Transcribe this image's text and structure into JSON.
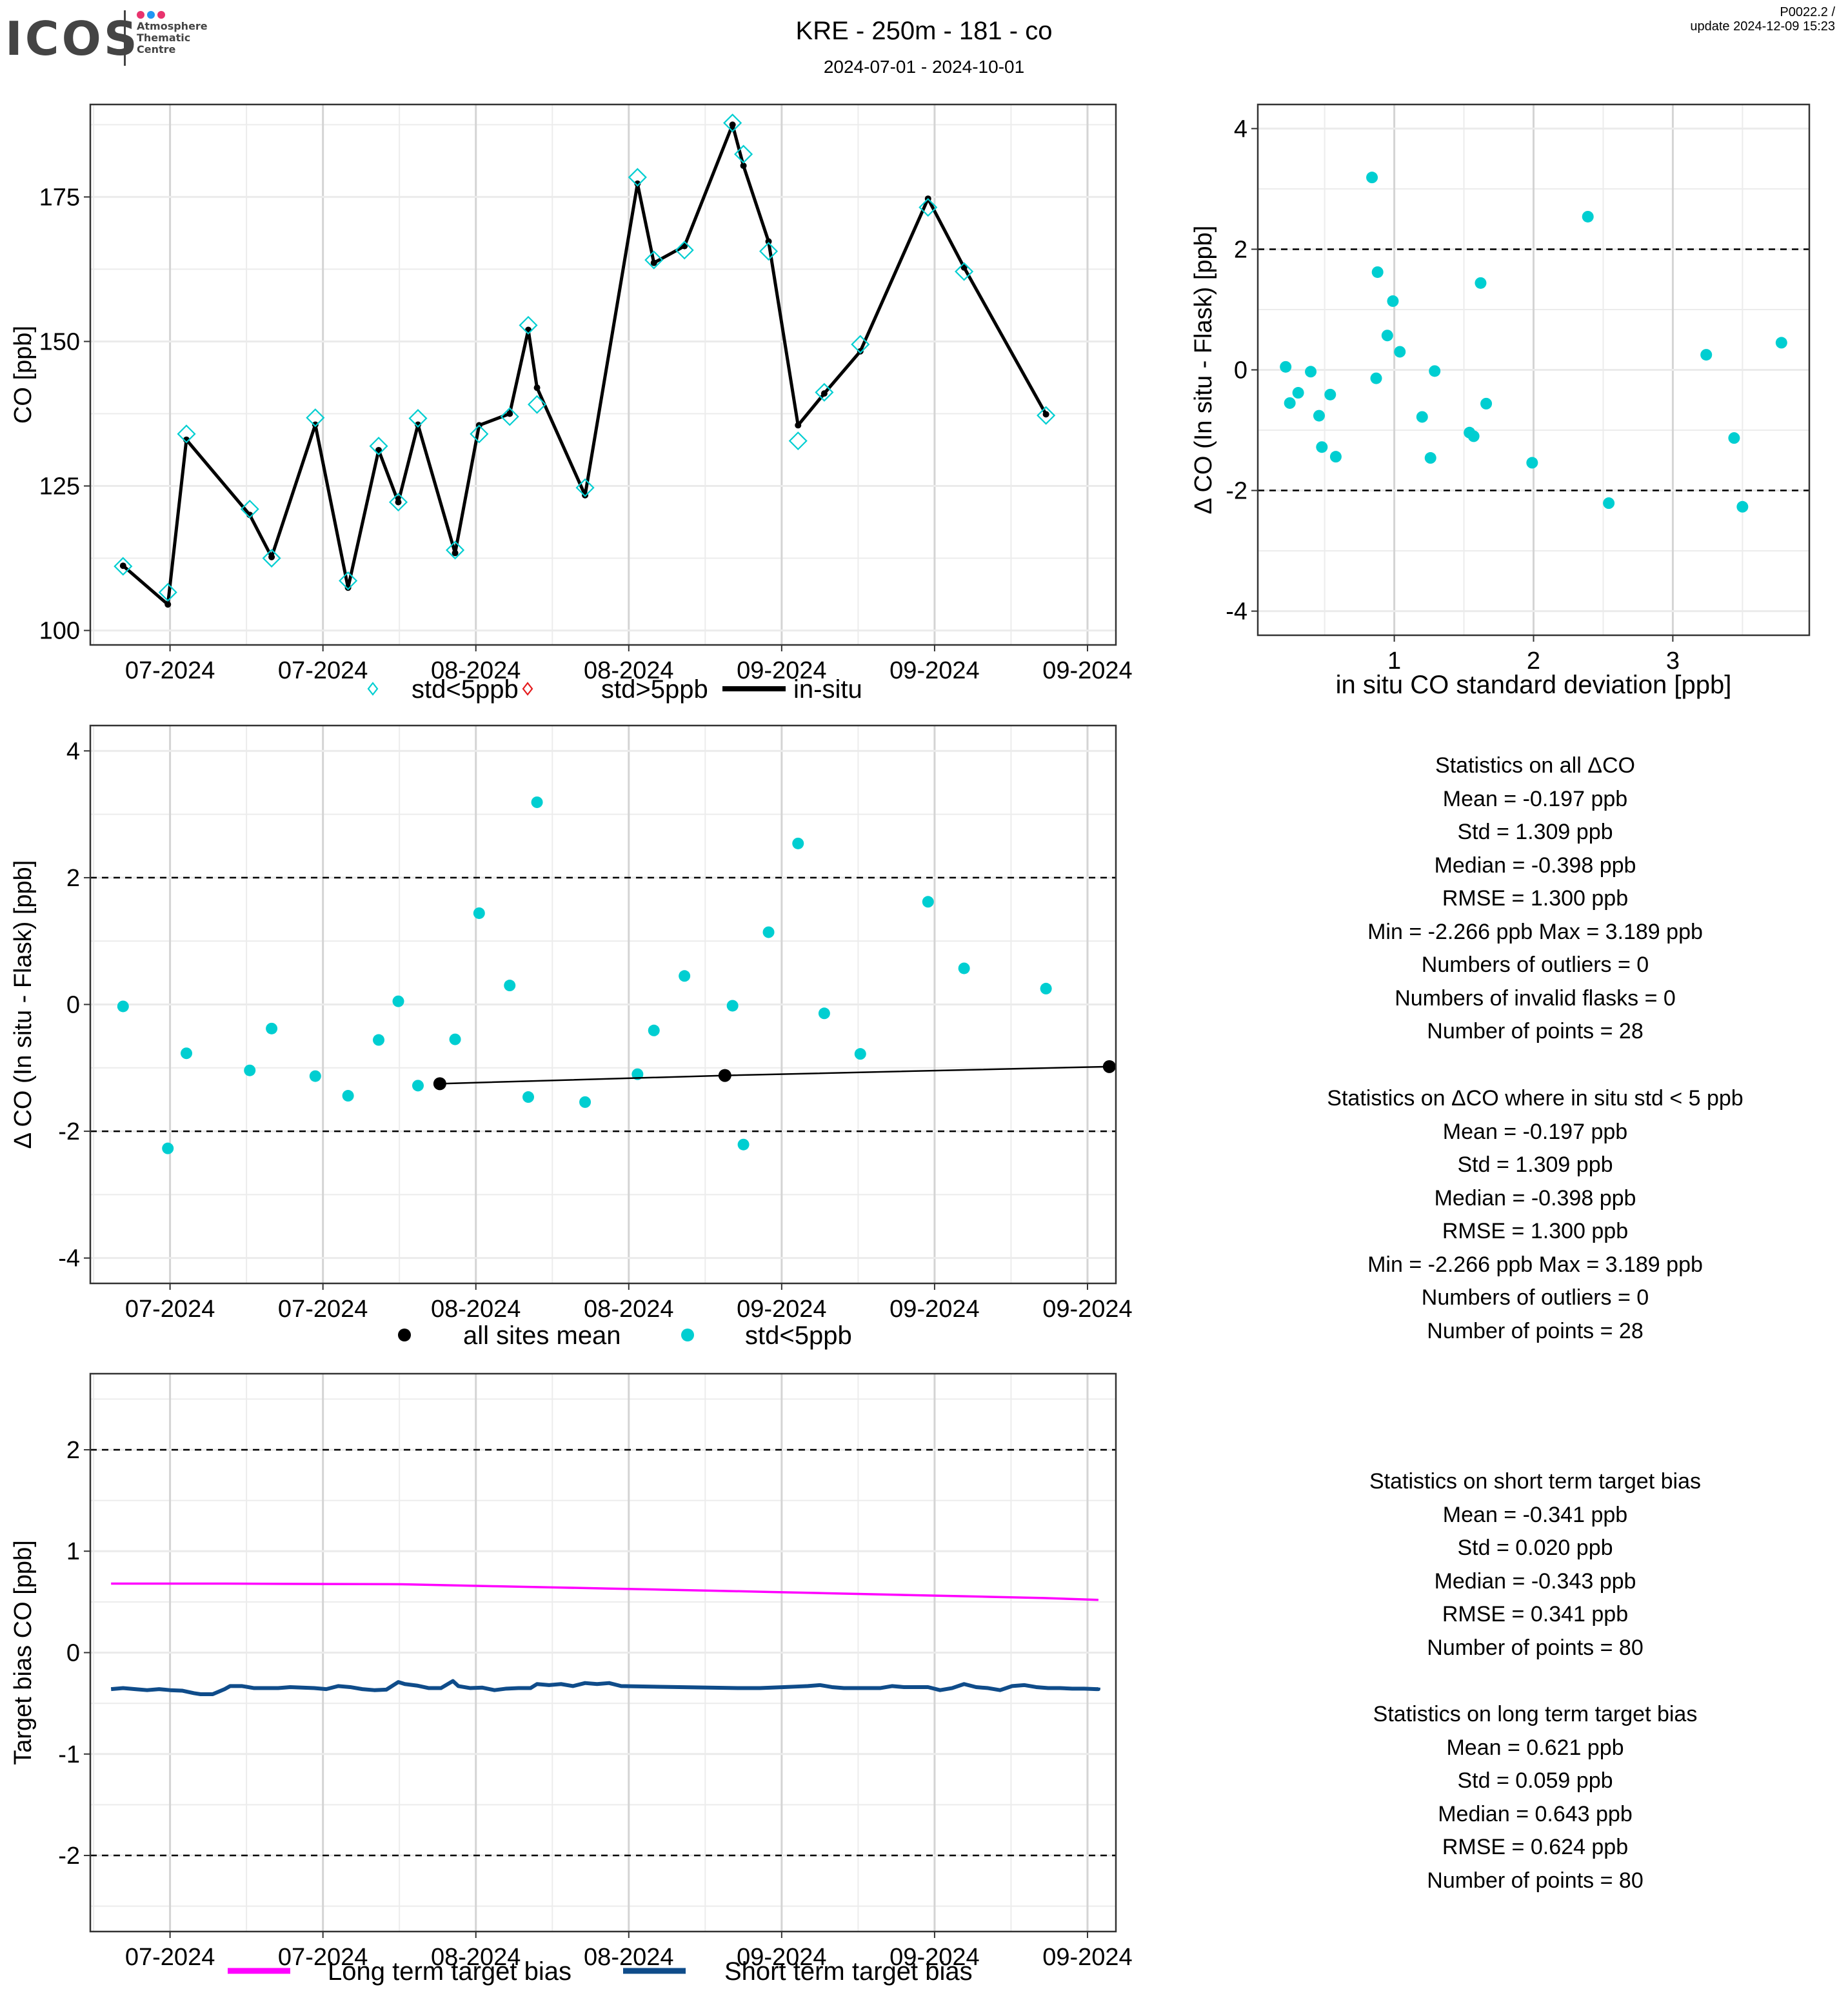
{
  "header": {
    "logo_text": "ICOS",
    "logo_subtitle": [
      "Atmosphere",
      "Thematic",
      "Centre"
    ],
    "logo_dot_colors": [
      "#e8336e",
      "#2196f3",
      "#e8336e"
    ],
    "title": "KRE - 250m - 181 - co",
    "date_range": "2024-07-01 - 2024-10-01",
    "version": "P0022.2 /",
    "update": "update  2024-12-09 15:23"
  },
  "colors": {
    "cyan": "#00CED1",
    "red": "#E41A1C",
    "black": "#000000",
    "magenta": "#FF00FF",
    "navy": "#0F4C8A",
    "grid_major": "#d4d4d4",
    "grid_minor": "#ececec"
  },
  "chart_data": [
    {
      "id": "timeseries",
      "type": "line",
      "title": "",
      "xlabel": "",
      "ylabel": "CO [ppb]",
      "x_unit": "days since 2024-07-01",
      "xlim": [
        -7.3,
        86.6
      ],
      "ylim": [
        97.5,
        191
      ],
      "x_ticks": [
        0,
        14,
        28,
        42,
        56,
        70,
        84
      ],
      "x_tick_labels": [
        "07-2024",
        "07-2024",
        "08-2024",
        "08-2024",
        "09-2024",
        "09-2024",
        "09-2024"
      ],
      "y_ticks": [
        100,
        125,
        150,
        175
      ],
      "y_tick_labels": [
        "100",
        "125",
        "150",
        "175"
      ],
      "grid": true,
      "legend": {
        "position": "bottom",
        "entries": [
          "std<5ppb",
          "std>5ppb",
          "in-situ"
        ]
      },
      "series": [
        {
          "name": "in-situ",
          "style": "line",
          "x": [
            -4.3,
            -0.2,
            1.5,
            7.3,
            9.3,
            13.3,
            16.3,
            19.1,
            20.9,
            22.7,
            26.1,
            28.3,
            31.1,
            32.8,
            33.6,
            38.0,
            42.8,
            44.3,
            47.1,
            51.5,
            52.5,
            54.8,
            57.5,
            59.9,
            63.2,
            69.4,
            72.7,
            80.2
          ],
          "y": [
            111.2,
            104.5,
            133.0,
            120.0,
            112.7,
            135.6,
            107.4,
            131.2,
            122.2,
            135.6,
            113.4,
            135.5,
            137.5,
            152.0,
            142.0,
            123.4,
            177.3,
            163.6,
            166.5,
            187.5,
            180.4,
            167.3,
            135.5,
            141.0,
            148.3,
            174.7,
            162.8,
            137.4
          ]
        },
        {
          "name": "std<5ppb",
          "style": "open-diamond",
          "x": [
            -4.3,
            -0.2,
            1.5,
            7.3,
            9.3,
            13.3,
            16.3,
            19.1,
            20.9,
            22.7,
            26.1,
            28.3,
            31.1,
            32.8,
            33.6,
            38.0,
            42.8,
            44.3,
            47.1,
            51.5,
            52.5,
            54.8,
            57.5,
            59.9,
            63.2,
            69.4,
            72.7,
            80.2
          ],
          "y": [
            111.1,
            106.6,
            134.0,
            121.0,
            112.5,
            136.8,
            108.6,
            131.9,
            122.2,
            136.7,
            113.9,
            134.0,
            137.0,
            152.8,
            139.1,
            124.7,
            178.4,
            164.1,
            165.8,
            187.8,
            182.4,
            165.6,
            132.8,
            141.2,
            149.5,
            173.2,
            162.1,
            137.2
          ]
        },
        {
          "name": "std>5ppb",
          "style": "open-diamond",
          "x": [],
          "y": []
        }
      ]
    },
    {
      "id": "scatter_std",
      "type": "scatter",
      "title": "",
      "xlabel": "in situ CO standard deviation [ppb]",
      "ylabel": "Δ CO (In situ - Flask) [ppb]",
      "xlim": [
        0.02,
        3.98
      ],
      "ylim": [
        -4.4,
        4.4
      ],
      "x_ticks": [
        1,
        2,
        3
      ],
      "x_tick_labels": [
        "1",
        "2",
        "3"
      ],
      "y_ticks": [
        -4,
        -2,
        0,
        2,
        4
      ],
      "y_tick_labels": [
        "-4",
        "-2",
        "0",
        "2",
        "4"
      ],
      "hlines": [
        2,
        -2
      ],
      "grid": true,
      "series": [
        {
          "name": "std<5ppb",
          "x": [
            0.22,
            0.25,
            0.31,
            0.4,
            0.46,
            0.48,
            0.54,
            0.58,
            0.84,
            0.87,
            0.88,
            0.95,
            0.99,
            1.04,
            1.2,
            1.26,
            1.29,
            1.54,
            1.57,
            1.62,
            1.66,
            1.99,
            2.39,
            2.54,
            3.24,
            3.44,
            3.5,
            3.78
          ],
          "y": [
            0.05,
            -0.55,
            -0.38,
            -0.03,
            -0.76,
            -1.28,
            -0.41,
            -1.44,
            3.19,
            -0.14,
            1.62,
            0.57,
            1.14,
            0.3,
            -0.78,
            -1.46,
            -0.02,
            -1.04,
            -1.1,
            1.44,
            -0.56,
            -1.54,
            2.54,
            -2.21,
            0.25,
            -1.13,
            -2.27,
            0.45
          ]
        }
      ]
    },
    {
      "id": "delta_timeseries",
      "type": "scatter",
      "title": "",
      "xlabel": "",
      "ylabel": "Δ CO (In situ - Flask) [ppb]",
      "x_unit": "days since 2024-07-01",
      "xlim": [
        -7.3,
        86.6
      ],
      "ylim": [
        -4.4,
        4.4
      ],
      "x_ticks": [
        0,
        14,
        28,
        42,
        56,
        70,
        84
      ],
      "x_tick_labels": [
        "07-2024",
        "07-2024",
        "08-2024",
        "08-2024",
        "09-2024",
        "09-2024",
        "09-2024"
      ],
      "y_ticks": [
        -4,
        -2,
        0,
        2,
        4
      ],
      "y_tick_labels": [
        "-4",
        "-2",
        "0",
        "2",
        "4"
      ],
      "hlines": [
        2,
        -2
      ],
      "grid": true,
      "legend": {
        "position": "bottom",
        "entries": [
          "all sites mean",
          "std<5ppb"
        ]
      },
      "series": [
        {
          "name": "std<5ppb",
          "x": [
            -4.3,
            -0.2,
            1.5,
            7.3,
            9.3,
            13.3,
            16.3,
            19.1,
            20.9,
            22.7,
            26.1,
            28.3,
            31.1,
            32.8,
            33.6,
            38.0,
            42.8,
            44.3,
            47.1,
            51.5,
            52.5,
            54.8,
            57.5,
            59.9,
            63.2,
            69.4,
            72.7,
            80.2
          ],
          "y": [
            -0.03,
            -2.27,
            -0.77,
            -1.04,
            -0.38,
            -1.13,
            -1.44,
            -0.56,
            0.05,
            -1.28,
            -0.55,
            1.44,
            0.3,
            -1.46,
            3.19,
            -1.54,
            -1.1,
            -0.41,
            0.45,
            -0.02,
            -2.21,
            1.14,
            2.54,
            -0.14,
            -0.78,
            1.62,
            0.57,
            0.25
          ]
        },
        {
          "name": "all sites mean",
          "x": [
            24.7,
            50.8,
            86.0
          ],
          "y": [
            -1.25,
            -1.12,
            -0.98
          ]
        }
      ]
    },
    {
      "id": "target_bias",
      "type": "line",
      "title": "",
      "xlabel": "",
      "ylabel": "Target bias CO [ppb]",
      "x_unit": "days since 2024-07-01",
      "xlim": [
        -7.3,
        86.6
      ],
      "ylim": [
        -2.75,
        2.75
      ],
      "x_ticks": [
        0,
        14,
        28,
        42,
        56,
        70,
        84
      ],
      "x_tick_labels": [
        "07-2024",
        "07-2024",
        "08-2024",
        "08-2024",
        "09-2024",
        "09-2024",
        "09-2024"
      ],
      "y_ticks": [
        -2,
        -1,
        0,
        1,
        2
      ],
      "y_tick_labels": [
        "-2",
        "-1",
        "0",
        "1",
        "2"
      ],
      "hlines": [
        2,
        -2
      ],
      "grid": true,
      "legend": {
        "position": "bottom",
        "entries": [
          "Long term target bias",
          "Short term target bias"
        ]
      },
      "series": [
        {
          "name": "Long term target bias",
          "x": [
            -5.4,
            0,
            5,
            10,
            15,
            20,
            21.2,
            25,
            30,
            35,
            40,
            45,
            50,
            55,
            60,
            65,
            70,
            75,
            80,
            85.0
          ],
          "y": [
            0.68,
            0.68,
            0.68,
            0.678,
            0.676,
            0.675,
            0.674,
            0.665,
            0.654,
            0.643,
            0.632,
            0.621,
            0.61,
            0.598,
            0.586,
            0.574,
            0.562,
            0.55,
            0.538,
            0.52
          ]
        },
        {
          "name": "Short term target bias",
          "x": [
            -5.4,
            -4.3,
            -3.2,
            -2.1,
            -1.0,
            0,
            1.1,
            2.2,
            2.8,
            3.9,
            5.0,
            5.5,
            6.6,
            7.7,
            8.8,
            9.9,
            11.0,
            12.1,
            13.2,
            14.3,
            15.4,
            16.5,
            17.6,
            18.7,
            19.8,
            20.9,
            21.5,
            22.6,
            23.7,
            24.8,
            25.9,
            26.4,
            27.5,
            28.6,
            29.7,
            30.8,
            31.9,
            33.0,
            33.6,
            34.7,
            35.8,
            36.9,
            38.0,
            39.1,
            40.2,
            41.3,
            52.0,
            54.0,
            55.1,
            56.2,
            57.3,
            58.4,
            59.5,
            60.6,
            61.7,
            62.8,
            63.9,
            65.0,
            66.1,
            67.2,
            68.3,
            69.4,
            70.5,
            71.6,
            72.7,
            73.8,
            74.9,
            76.0,
            77.1,
            78.2,
            79.3,
            80.4,
            81.5,
            82.6,
            83.7,
            84.8,
            85.0,
            84.9,
            85.0,
            85.0
          ],
          "y": [
            -0.36,
            -0.35,
            -0.36,
            -0.37,
            -0.36,
            -0.37,
            -0.375,
            -0.4,
            -0.41,
            -0.41,
            -0.36,
            -0.33,
            -0.33,
            -0.35,
            -0.35,
            -0.35,
            -0.34,
            -0.345,
            -0.35,
            -0.36,
            -0.33,
            -0.34,
            -0.36,
            -0.37,
            -0.365,
            -0.29,
            -0.31,
            -0.325,
            -0.35,
            -0.35,
            -0.28,
            -0.33,
            -0.35,
            -0.345,
            -0.37,
            -0.355,
            -0.35,
            -0.35,
            -0.31,
            -0.32,
            -0.31,
            -0.33,
            -0.3,
            -0.31,
            -0.3,
            -0.33,
            -0.35,
            -0.35,
            -0.345,
            -0.34,
            -0.335,
            -0.33,
            -0.32,
            -0.34,
            -0.35,
            -0.35,
            -0.35,
            -0.35,
            -0.33,
            -0.34,
            -0.34,
            -0.34,
            -0.37,
            -0.35,
            -0.31,
            -0.34,
            -0.35,
            -0.37,
            -0.33,
            -0.32,
            -0.34,
            -0.35,
            -0.35,
            -0.355,
            -0.355,
            -0.36,
            -0.36,
            -0.355,
            -0.36,
            -0.345
          ]
        }
      ]
    }
  ],
  "stats": {
    "all_delta": [
      "Statistics on all ΔCO",
      "Mean =  -0.197 ppb",
      "Std =  1.309 ppb",
      "Median =  -0.398 ppb",
      "RMSE =  1.300 ppb",
      "Min =  -2.266 ppb Max =  3.189 ppb",
      "Numbers of outliers =  0",
      "Numbers of invalid flasks =  0",
      "Number of points =  28"
    ],
    "filtered_delta": [
      "Statistics on ΔCO where in situ std < 5 ppb",
      "Mean =  -0.197 ppb",
      "Std =  1.309 ppb",
      "Median =  -0.398 ppb",
      "RMSE =  1.300 ppb",
      "Min =  -2.266 ppb Max =  3.189 ppb",
      "Numbers of outliers =  0",
      "Number of points =  28"
    ],
    "short_term": [
      "Statistics on short term target bias",
      "Mean =  -0.341 ppb",
      "Std =  0.020 ppb",
      "Median =  -0.343 ppb",
      "RMSE =  0.341 ppb",
      "Number of points =  80"
    ],
    "long_term": [
      "Statistics on long term target bias",
      "Mean =  0.621 ppb",
      "Std =  0.059 ppb",
      "Median =  0.643 ppb",
      "RMSE =  0.624 ppb",
      "Number of points =  80"
    ]
  }
}
